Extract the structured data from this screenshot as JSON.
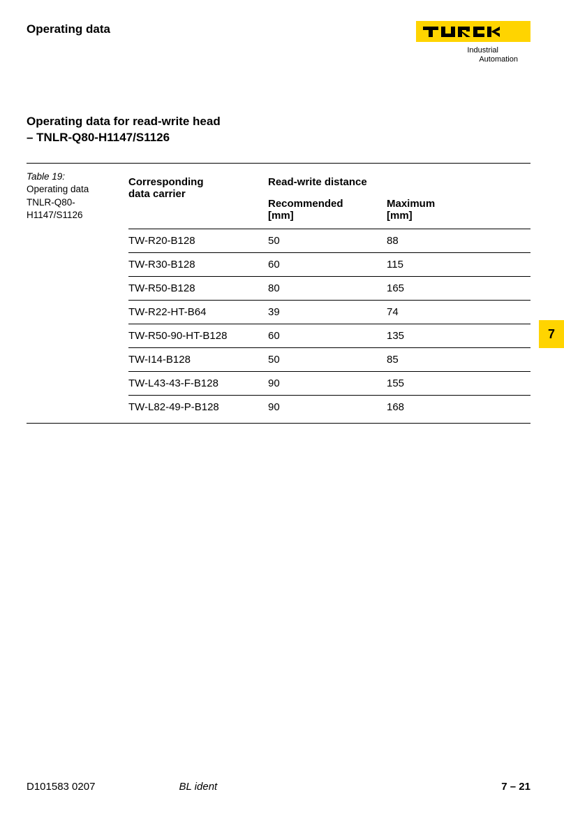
{
  "brand": {
    "name": "TURCK",
    "tagline_line1": "Industrial",
    "tagline_line2": "Automation",
    "logo_bg": "#ffd400",
    "logo_fg": "#000000"
  },
  "header": {
    "title": "Operating data"
  },
  "section": {
    "line1": "Operating data for read-write head",
    "line2": "– TNLR-Q80-H1147/S1126"
  },
  "table": {
    "caption_line1": "Table 19:",
    "caption_line2": "Operating data",
    "caption_line3": "TNLR-Q80-",
    "caption_line4": "H1147/S1126",
    "col_carrier_l1": "Corresponding",
    "col_carrier_l2": "data carrier",
    "col_span": "Read-write distance",
    "col_rec_l1": "Recommended",
    "col_rec_l2": "[mm]",
    "col_max_l1": "Maximum",
    "col_max_l2": "[mm]",
    "rows": [
      {
        "carrier": "TW-R20-B128",
        "rec": "50",
        "max": "88"
      },
      {
        "carrier": "TW-R30-B128",
        "rec": "60",
        "max": "115"
      },
      {
        "carrier": "TW-R50-B128",
        "rec": "80",
        "max": "165"
      },
      {
        "carrier": "TW-R22-HT-B64",
        "rec": "39",
        "max": "74"
      },
      {
        "carrier": "TW-R50-90-HT-B128",
        "rec": "60",
        "max": "135"
      },
      {
        "carrier": "TW-I14-B128",
        "rec": "50",
        "max": "85"
      },
      {
        "carrier": "TW-L43-43-F-B128",
        "rec": "90",
        "max": "155"
      },
      {
        "carrier": "TW-L82-49-P-B128",
        "rec": "90",
        "max": "168"
      }
    ]
  },
  "side_tab": {
    "label": "7",
    "bg": "#ffd400"
  },
  "footer": {
    "left": "D101583  0207",
    "center": "BL ident",
    "right": "7 – 21"
  },
  "colors": {
    "text": "#000000",
    "bg": "#ffffff",
    "rule": "#000000"
  }
}
